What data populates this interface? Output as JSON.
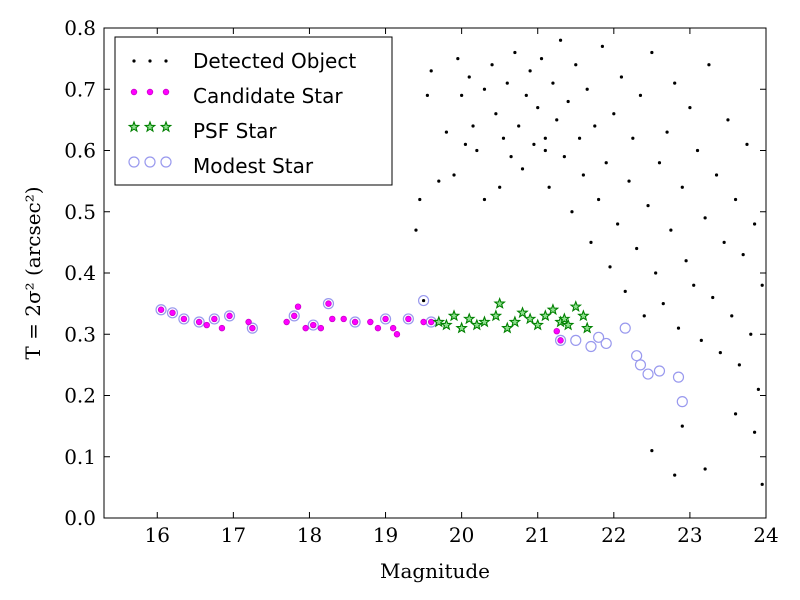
{
  "chart_data": {
    "type": "scatter",
    "xlabel": "Magnitude",
    "ylabel": "T = 2σ² (arcsec²)",
    "xlim": [
      15.3,
      24.0
    ],
    "ylim": [
      0.0,
      0.8
    ],
    "xticks": [
      16,
      17,
      18,
      19,
      20,
      21,
      22,
      23,
      24
    ],
    "yticks": [
      0.0,
      0.1,
      0.2,
      0.3,
      0.4,
      0.5,
      0.6,
      0.7,
      0.8
    ],
    "grid": false,
    "legend_position": "top-left",
    "legend": [
      {
        "label": "Detected Object",
        "marker": "dot",
        "color": "#000000"
      },
      {
        "label": "Candidate Star",
        "marker": "circle-small",
        "color": "#ff00ff"
      },
      {
        "label": "PSF Star",
        "marker": "star",
        "color": "#008000"
      },
      {
        "label": "Modest Star",
        "marker": "circle-open",
        "color": "#9999ee"
      }
    ],
    "series": [
      {
        "name": "Detected Object",
        "color": "#000000",
        "points": [
          [
            19.5,
            0.355
          ],
          [
            19.4,
            0.47
          ],
          [
            19.45,
            0.52
          ],
          [
            19.55,
            0.69
          ],
          [
            19.6,
            0.73
          ],
          [
            19.7,
            0.55
          ],
          [
            19.8,
            0.63
          ],
          [
            19.9,
            0.56
          ],
          [
            19.95,
            0.75
          ],
          [
            20.0,
            0.69
          ],
          [
            20.05,
            0.61
          ],
          [
            20.1,
            0.72
          ],
          [
            20.15,
            0.64
          ],
          [
            20.2,
            0.6
          ],
          [
            20.3,
            0.7
          ],
          [
            20.4,
            0.74
          ],
          [
            20.45,
            0.66
          ],
          [
            20.5,
            0.54
          ],
          [
            20.55,
            0.62
          ],
          [
            20.6,
            0.71
          ],
          [
            20.65,
            0.59
          ],
          [
            20.7,
            0.76
          ],
          [
            20.75,
            0.64
          ],
          [
            20.8,
            0.57
          ],
          [
            20.85,
            0.69
          ],
          [
            20.9,
            0.73
          ],
          [
            20.95,
            0.61
          ],
          [
            21.0,
            0.67
          ],
          [
            21.05,
            0.75
          ],
          [
            21.1,
            0.6
          ],
          [
            21.15,
            0.54
          ],
          [
            21.2,
            0.71
          ],
          [
            21.25,
            0.65
          ],
          [
            21.3,
            0.78
          ],
          [
            21.35,
            0.59
          ],
          [
            21.4,
            0.68
          ],
          [
            21.45,
            0.5
          ],
          [
            21.5,
            0.74
          ],
          [
            21.55,
            0.62
          ],
          [
            21.6,
            0.56
          ],
          [
            21.65,
            0.7
          ],
          [
            21.7,
            0.45
          ],
          [
            21.75,
            0.64
          ],
          [
            21.8,
            0.52
          ],
          [
            21.85,
            0.77
          ],
          [
            21.9,
            0.58
          ],
          [
            21.95,
            0.41
          ],
          [
            22.0,
            0.66
          ],
          [
            22.05,
            0.48
          ],
          [
            22.1,
            0.72
          ],
          [
            22.15,
            0.37
          ],
          [
            22.2,
            0.55
          ],
          [
            22.25,
            0.62
          ],
          [
            22.3,
            0.44
          ],
          [
            22.35,
            0.69
          ],
          [
            22.4,
            0.33
          ],
          [
            22.45,
            0.51
          ],
          [
            22.5,
            0.76
          ],
          [
            22.55,
            0.4
          ],
          [
            22.6,
            0.58
          ],
          [
            22.65,
            0.35
          ],
          [
            22.7,
            0.63
          ],
          [
            22.75,
            0.47
          ],
          [
            22.8,
            0.71
          ],
          [
            22.85,
            0.31
          ],
          [
            22.9,
            0.54
          ],
          [
            22.95,
            0.42
          ],
          [
            23.0,
            0.67
          ],
          [
            23.05,
            0.38
          ],
          [
            23.1,
            0.6
          ],
          [
            23.15,
            0.29
          ],
          [
            23.2,
            0.49
          ],
          [
            23.25,
            0.74
          ],
          [
            23.3,
            0.36
          ],
          [
            23.35,
            0.56
          ],
          [
            23.4,
            0.27
          ],
          [
            23.45,
            0.45
          ],
          [
            23.5,
            0.65
          ],
          [
            23.55,
            0.33
          ],
          [
            23.6,
            0.52
          ],
          [
            23.65,
            0.25
          ],
          [
            23.7,
            0.43
          ],
          [
            23.75,
            0.61
          ],
          [
            23.8,
            0.3
          ],
          [
            23.85,
            0.48
          ],
          [
            23.9,
            0.21
          ],
          [
            23.95,
            0.38
          ],
          [
            22.5,
            0.11
          ],
          [
            22.8,
            0.07
          ],
          [
            23.2,
            0.08
          ],
          [
            23.85,
            0.14
          ],
          [
            23.95,
            0.055
          ],
          [
            23.6,
            0.17
          ],
          [
            22.9,
            0.15
          ],
          [
            21.1,
            0.62
          ],
          [
            20.3,
            0.52
          ]
        ]
      },
      {
        "name": "Candidate Star",
        "color": "#ff00ff",
        "points": [
          [
            16.05,
            0.34
          ],
          [
            16.2,
            0.335
          ],
          [
            16.35,
            0.325
          ],
          [
            16.55,
            0.32
          ],
          [
            16.65,
            0.315
          ],
          [
            16.75,
            0.325
          ],
          [
            16.85,
            0.31
          ],
          [
            16.95,
            0.33
          ],
          [
            17.2,
            0.32
          ],
          [
            17.25,
            0.31
          ],
          [
            17.7,
            0.32
          ],
          [
            17.8,
            0.33
          ],
          [
            17.85,
            0.345
          ],
          [
            17.95,
            0.31
          ],
          [
            18.05,
            0.315
          ],
          [
            18.15,
            0.31
          ],
          [
            18.25,
            0.35
          ],
          [
            18.3,
            0.325
          ],
          [
            18.45,
            0.325
          ],
          [
            18.6,
            0.32
          ],
          [
            18.8,
            0.32
          ],
          [
            18.9,
            0.31
          ],
          [
            19.0,
            0.325
          ],
          [
            19.1,
            0.31
          ],
          [
            19.15,
            0.3
          ],
          [
            19.3,
            0.325
          ],
          [
            19.5,
            0.32
          ],
          [
            19.6,
            0.32
          ],
          [
            21.25,
            0.305
          ],
          [
            21.3,
            0.29
          ]
        ]
      },
      {
        "name": "PSF Star",
        "color": "#008000",
        "points": [
          [
            19.7,
            0.32
          ],
          [
            19.8,
            0.315
          ],
          [
            19.9,
            0.33
          ],
          [
            20.0,
            0.31
          ],
          [
            20.1,
            0.325
          ],
          [
            20.2,
            0.315
          ],
          [
            20.3,
            0.32
          ],
          [
            20.45,
            0.33
          ],
          [
            20.5,
            0.35
          ],
          [
            20.6,
            0.31
          ],
          [
            20.7,
            0.32
          ],
          [
            20.8,
            0.335
          ],
          [
            20.9,
            0.325
          ],
          [
            21.0,
            0.315
          ],
          [
            21.1,
            0.33
          ],
          [
            21.2,
            0.34
          ],
          [
            21.3,
            0.32
          ],
          [
            21.35,
            0.325
          ],
          [
            21.4,
            0.315
          ],
          [
            21.5,
            0.345
          ],
          [
            21.6,
            0.33
          ],
          [
            21.65,
            0.31
          ]
        ]
      },
      {
        "name": "Modest Star",
        "color": "#9999ee",
        "points": [
          [
            16.05,
            0.34
          ],
          [
            16.2,
            0.335
          ],
          [
            16.35,
            0.325
          ],
          [
            16.55,
            0.32
          ],
          [
            16.75,
            0.325
          ],
          [
            16.95,
            0.33
          ],
          [
            17.25,
            0.31
          ],
          [
            17.8,
            0.33
          ],
          [
            18.05,
            0.315
          ],
          [
            18.25,
            0.35
          ],
          [
            18.6,
            0.32
          ],
          [
            19.0,
            0.325
          ],
          [
            19.3,
            0.325
          ],
          [
            19.5,
            0.355
          ],
          [
            19.6,
            0.32
          ],
          [
            21.3,
            0.29
          ],
          [
            21.5,
            0.29
          ],
          [
            21.7,
            0.28
          ],
          [
            21.8,
            0.295
          ],
          [
            21.9,
            0.285
          ],
          [
            22.15,
            0.31
          ],
          [
            22.3,
            0.265
          ],
          [
            22.35,
            0.25
          ],
          [
            22.45,
            0.235
          ],
          [
            22.6,
            0.24
          ],
          [
            22.85,
            0.23
          ],
          [
            22.9,
            0.19
          ]
        ]
      }
    ]
  }
}
